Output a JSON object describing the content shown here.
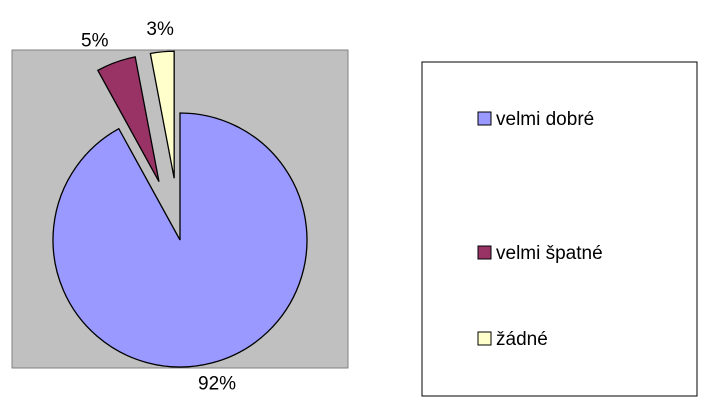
{
  "chart_data": {
    "type": "pie",
    "categories": [
      "velmi dobré",
      "velmi špatné",
      "žádné"
    ],
    "values": [
      92,
      5,
      3
    ],
    "value_labels": [
      "92%",
      "5%",
      "3%"
    ],
    "colors": [
      "#9999ff",
      "#993366",
      "#ffffcc"
    ],
    "legend": "right"
  }
}
